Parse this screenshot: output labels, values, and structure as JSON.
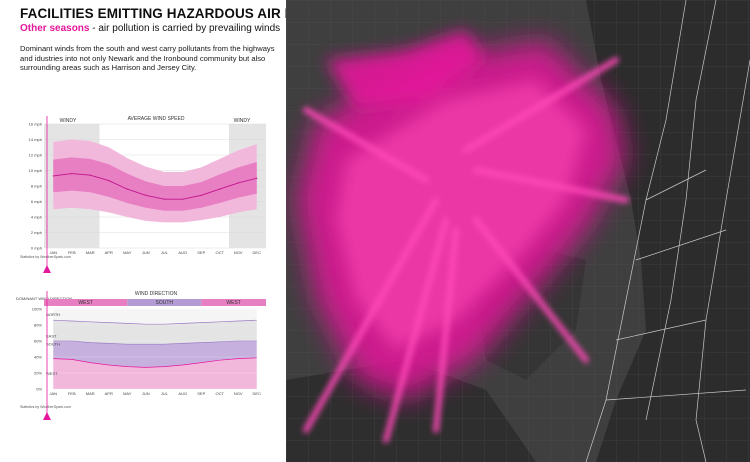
{
  "header": {
    "title": "FACILITIES EMITTING HAZARDOUS AIR POLLUTANTS",
    "subtitle_accent": "Other seasons",
    "subtitle_rest": " - air pollution is carried by prevailing winds",
    "intro": "Dominant winds from the south and west carry pollutants from the highways and idustries into not only Newark and the Ironbound community but also surrounding areas such as Harrison and Jersey City."
  },
  "colors": {
    "accent": "#e5179b",
    "magenta_light": "#f2b8dc",
    "magenta_mid": "#e77fc2",
    "purple_mid": "#b59bd4",
    "map_land": "#3f3f3f",
    "map_water": "#2a2a2a"
  },
  "icons": {
    "marker": "triangle-marker-icon"
  },
  "chart_data": [
    {
      "type": "area",
      "title": "AVERAGE WIND SPEED",
      "categories": [
        "JAN",
        "FEB",
        "MAR",
        "APR",
        "MAY",
        "JUN",
        "JUL",
        "AUG",
        "SEP",
        "OCT",
        "NOV",
        "DEC"
      ],
      "ytick_labels": [
        "0 mph",
        "2 mph",
        "4 mph",
        "6 mph",
        "8 mph",
        "10 mph",
        "12 mph",
        "14 mph",
        "16 mph"
      ],
      "ylim": [
        0,
        16
      ],
      "annotations": [
        "WINDY",
        "WINDY"
      ],
      "source": "Statistics by WeatherSpark.com",
      "series": [
        {
          "values": [
            9.3,
            9.6,
            9.4,
            8.7,
            7.6,
            6.8,
            6.3,
            6.3,
            6.8,
            7.6,
            8.4,
            9.0
          ]
        }
      ],
      "band_outer": {
        "low": [
          5.0,
          5.2,
          5.0,
          4.6,
          4.0,
          3.5,
          3.3,
          3.3,
          3.6,
          4.0,
          4.6,
          5.0
        ],
        "high": [
          13.7,
          14.0,
          13.8,
          13.0,
          11.6,
          10.5,
          9.8,
          9.8,
          10.4,
          11.5,
          12.6,
          13.4
        ]
      },
      "band_inner": {
        "low": [
          7.2,
          7.4,
          7.2,
          6.6,
          5.8,
          5.2,
          4.8,
          4.8,
          5.2,
          5.8,
          6.5,
          7.0
        ],
        "high": [
          11.4,
          11.7,
          11.5,
          10.8,
          9.6,
          8.6,
          8.0,
          8.0,
          8.5,
          9.5,
          10.4,
          11.1
        ]
      },
      "highlight_months": [
        [
          "JAN",
          "MAR"
        ],
        [
          "NOV",
          "DEC"
        ]
      ]
    },
    {
      "type": "area",
      "title": "WIND DIRECTION",
      "y_title": "DOMINANT WIND DIRECTION",
      "categories": [
        "JAN",
        "FEB",
        "MAR",
        "APR",
        "MAY",
        "JUN",
        "JUL",
        "AUG",
        "SEP",
        "OCT",
        "NOV",
        "DEC"
      ],
      "ytick_labels": [
        "0%",
        "20%",
        "40%",
        "60%",
        "80%",
        "100%"
      ],
      "ylim": [
        0,
        100
      ],
      "band_labels": [
        "NORTH",
        "EAST",
        "SOUTH",
        "WEST"
      ],
      "dominant_segments": [
        {
          "label": "WEST",
          "months": [
            "JAN",
            "MAY"
          ]
        },
        {
          "label": "SOUTH",
          "months": [
            "MAY",
            "SEP"
          ]
        },
        {
          "label": "WEST",
          "months": [
            "SEP",
            "DEC"
          ]
        }
      ],
      "source": "Statistics by WeatherSpark.com",
      "series": [
        {
          "values": [
            38,
            37,
            33,
            30,
            28,
            27,
            28,
            30,
            33,
            36,
            38,
            39
          ]
        },
        {
          "values": [
            60,
            60,
            58,
            57,
            56,
            56,
            56,
            57,
            58,
            59,
            60,
            60
          ]
        },
        {
          "values": [
            86,
            85,
            84,
            83,
            82,
            81,
            81,
            82,
            83,
            84,
            85,
            86
          ]
        }
      ]
    }
  ]
}
